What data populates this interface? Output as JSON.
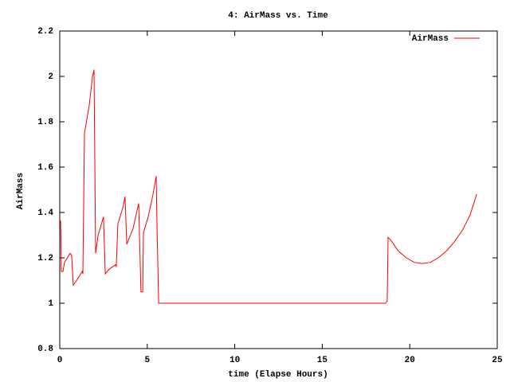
{
  "chart_data": {
    "type": "line",
    "title": "4: AirMass vs. Time",
    "x_label": "time (Elapse Hours)",
    "y_label": "AirMass",
    "x": [
      0,
      0.05,
      0.09,
      0.18,
      0.27,
      0.59,
      0.68,
      0.77,
      0.96,
      1.28,
      1.32,
      1.41,
      1.68,
      1.87,
      1.96,
      2.05,
      2.19,
      2.5,
      2.6,
      2.82,
      3.19,
      3.23,
      3.32,
      3.6,
      3.73,
      3.83,
      4.19,
      4.51,
      4.64,
      4.74,
      4.78,
      5.05,
      5.33,
      5.51,
      5.56,
      5.65,
      18.62,
      18.71,
      18.76,
      18.9,
      19.35,
      19.81,
      20.26,
      20.72,
      21.17,
      21.63,
      22.09,
      22.54,
      23,
      23.45,
      23.82
    ],
    "series": [
      {
        "name": "AirMass",
        "color": "#ff0000",
        "values": [
          1.37,
          1.36,
          1.14,
          1.14,
          1.18,
          1.22,
          1.21,
          1.08,
          1.1,
          1.14,
          1.13,
          1.75,
          1.87,
          2.0,
          2.03,
          1.22,
          1.3,
          1.38,
          1.13,
          1.15,
          1.17,
          1.16,
          1.35,
          1.42,
          1.47,
          1.26,
          1.33,
          1.44,
          1.05,
          1.05,
          1.31,
          1.38,
          1.48,
          1.56,
          1.33,
          1.0,
          1.0,
          1.01,
          1.29,
          1.28,
          1.23,
          1.2,
          1.18,
          1.175,
          1.18,
          1.2,
          1.23,
          1.27,
          1.32,
          1.39,
          1.48
        ]
      }
    ],
    "xlim": [
      0,
      25
    ],
    "xticks": [
      0,
      5,
      10,
      15,
      20,
      25
    ],
    "ylim": [
      0.8,
      2.2
    ],
    "yticks": [
      0.8,
      1,
      1.2,
      1.4,
      1.6,
      1.8,
      2,
      2.2
    ],
    "grid": false,
    "legend": "top-right"
  }
}
